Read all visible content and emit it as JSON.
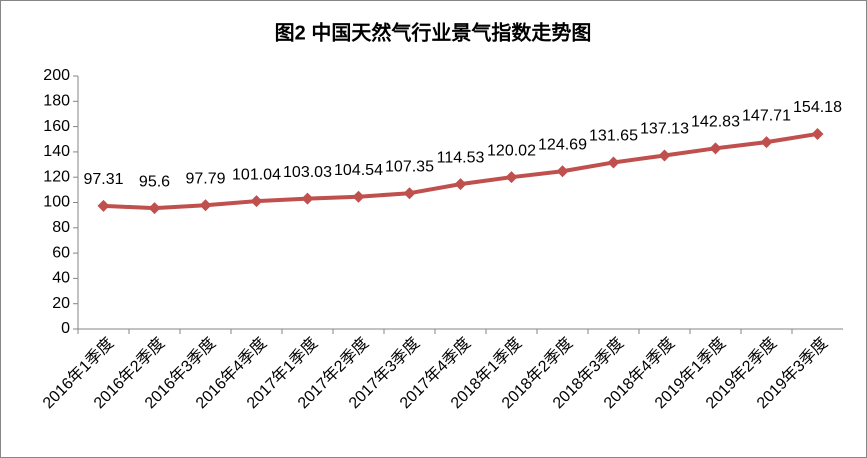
{
  "chart_data": {
    "type": "line",
    "title": "图2  中国天然气行业景气指数走势图",
    "categories": [
      "2016年1季度",
      "2016年2季度",
      "2016年3季度",
      "2016年4季度",
      "2017年1季度",
      "2017年2季度",
      "2017年3季度",
      "2017年4季度",
      "2018年1季度",
      "2018年2季度",
      "2018年3季度",
      "2018年4季度",
      "2019年1季度",
      "2019年2季度",
      "2019年3季度"
    ],
    "series": [
      {
        "color": "#c0504d",
        "values": [
          97.31,
          95.6,
          97.79,
          101.04,
          103.03,
          104.54,
          107.35,
          114.53,
          120.02,
          124.69,
          131.65,
          137.13,
          142.83,
          147.71,
          154.18
        ]
      }
    ],
    "ylim": [
      0,
      200
    ],
    "yticks": [
      0,
      20,
      40,
      60,
      80,
      100,
      120,
      140,
      160,
      180,
      200
    ],
    "grid": false
  }
}
